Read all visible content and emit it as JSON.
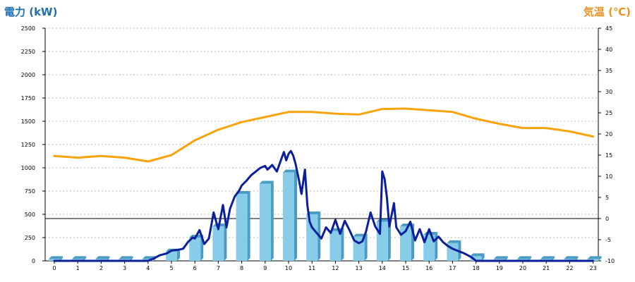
{
  "chart_data": {
    "type": "bar+line",
    "y_left_title": "電力 (kW)",
    "y_right_title": "気温 (℃)",
    "y_left_ticks": [
      "0",
      "250",
      "500",
      "750",
      "1000",
      "1250",
      "1500",
      "1750",
      "2000",
      "2250",
      "2500"
    ],
    "y_right_ticks": [
      "-10",
      "-5",
      "0",
      "5",
      "10",
      "15",
      "20",
      "25",
      "30",
      "35",
      "40",
      "45"
    ],
    "x_ticks": [
      "0",
      "1",
      "2",
      "3",
      "4",
      "5",
      "6",
      "7",
      "8",
      "9",
      "10",
      "11",
      "12",
      "13",
      "14",
      "15",
      "16",
      "17",
      "18",
      "19",
      "20",
      "21",
      "22",
      "23"
    ],
    "y_left_range": [
      0,
      2500
    ],
    "y_right_range": [
      -10,
      45
    ],
    "grid": "horizontal dotted",
    "reference_line": {
      "axis": "right",
      "value": 0
    },
    "colors": {
      "left_title": "#1f6fb0",
      "right_title": "#f0901e",
      "bars": "#87cde9",
      "bar_side": "#4a9cc2",
      "power_line": "#0a1f99",
      "temp_line": "#f9a30b",
      "grid": "#bbbbbb"
    },
    "bars_kw": [
      20,
      20,
      20,
      20,
      20,
      100,
      250,
      370,
      720,
      830,
      950,
      500,
      320,
      260,
      420,
      370,
      280,
      190,
      50,
      20,
      20,
      20,
      20,
      20
    ],
    "power_line_kw": [
      [
        0,
        0
      ],
      [
        1,
        0
      ],
      [
        2,
        0
      ],
      [
        3,
        0
      ],
      [
        4,
        0
      ],
      [
        4.2,
        20
      ],
      [
        4.5,
        60
      ],
      [
        4.8,
        80
      ],
      [
        5,
        110
      ],
      [
        5.3,
        120
      ],
      [
        5.5,
        130
      ],
      [
        5.7,
        200
      ],
      [
        5.9,
        250
      ],
      [
        6,
        240
      ],
      [
        6.2,
        330
      ],
      [
        6.4,
        180
      ],
      [
        6.6,
        240
      ],
      [
        6.8,
        520
      ],
      [
        7,
        340
      ],
      [
        7.2,
        600
      ],
      [
        7.35,
        360
      ],
      [
        7.5,
        560
      ],
      [
        7.7,
        690
      ],
      [
        7.9,
        760
      ],
      [
        8,
        810
      ],
      [
        8.2,
        860
      ],
      [
        8.4,
        920
      ],
      [
        8.6,
        960
      ],
      [
        8.8,
        1000
      ],
      [
        9,
        1020
      ],
      [
        9.1,
        980
      ],
      [
        9.3,
        1030
      ],
      [
        9.5,
        960
      ],
      [
        9.7,
        1100
      ],
      [
        9.8,
        1170
      ],
      [
        9.9,
        1080
      ],
      [
        10,
        1150
      ],
      [
        10.1,
        1180
      ],
      [
        10.2,
        1130
      ],
      [
        10.3,
        1040
      ],
      [
        10.45,
        860
      ],
      [
        10.55,
        720
      ],
      [
        10.7,
        980
      ],
      [
        10.8,
        600
      ],
      [
        10.9,
        420
      ],
      [
        11,
        360
      ],
      [
        11.2,
        300
      ],
      [
        11.4,
        240
      ],
      [
        11.6,
        360
      ],
      [
        11.8,
        300
      ],
      [
        12,
        440
      ],
      [
        12.2,
        290
      ],
      [
        12.4,
        430
      ],
      [
        12.6,
        330
      ],
      [
        12.8,
        220
      ],
      [
        13,
        190
      ],
      [
        13.15,
        210
      ],
      [
        13.3,
        310
      ],
      [
        13.5,
        520
      ],
      [
        13.7,
        370
      ],
      [
        13.9,
        290
      ],
      [
        14,
        960
      ],
      [
        14.1,
        880
      ],
      [
        14.2,
        680
      ],
      [
        14.3,
        370
      ],
      [
        14.5,
        620
      ],
      [
        14.6,
        360
      ],
      [
        14.8,
        280
      ],
      [
        15,
        320
      ],
      [
        15.2,
        420
      ],
      [
        15.4,
        220
      ],
      [
        15.6,
        340
      ],
      [
        15.8,
        200
      ],
      [
        16,
        340
      ],
      [
        16.2,
        210
      ],
      [
        16.4,
        260
      ],
      [
        16.6,
        200
      ],
      [
        16.8,
        160
      ],
      [
        17,
        130
      ],
      [
        17.2,
        110
      ],
      [
        17.5,
        80
      ],
      [
        17.8,
        40
      ],
      [
        18,
        0
      ],
      [
        19,
        0
      ],
      [
        20,
        0
      ],
      [
        21,
        0
      ],
      [
        22,
        0
      ],
      [
        23,
        0
      ]
    ],
    "temp_line_c": [
      [
        0,
        14.8
      ],
      [
        1,
        14.4
      ],
      [
        2,
        14.8
      ],
      [
        3,
        14.4
      ],
      [
        4,
        13.5
      ],
      [
        5,
        15
      ],
      [
        6,
        18.5
      ],
      [
        7,
        21
      ],
      [
        8,
        22.8
      ],
      [
        9,
        24
      ],
      [
        10,
        25.2
      ],
      [
        11,
        25.2
      ],
      [
        12,
        24.8
      ],
      [
        13,
        24.6
      ],
      [
        14,
        25.9
      ],
      [
        15,
        26
      ],
      [
        16,
        25.6
      ],
      [
        17,
        25.2
      ],
      [
        18,
        23.6
      ],
      [
        19,
        22.4
      ],
      [
        20,
        21.4
      ],
      [
        21,
        21.4
      ],
      [
        22,
        20.6
      ],
      [
        23,
        19.4
      ]
    ]
  }
}
